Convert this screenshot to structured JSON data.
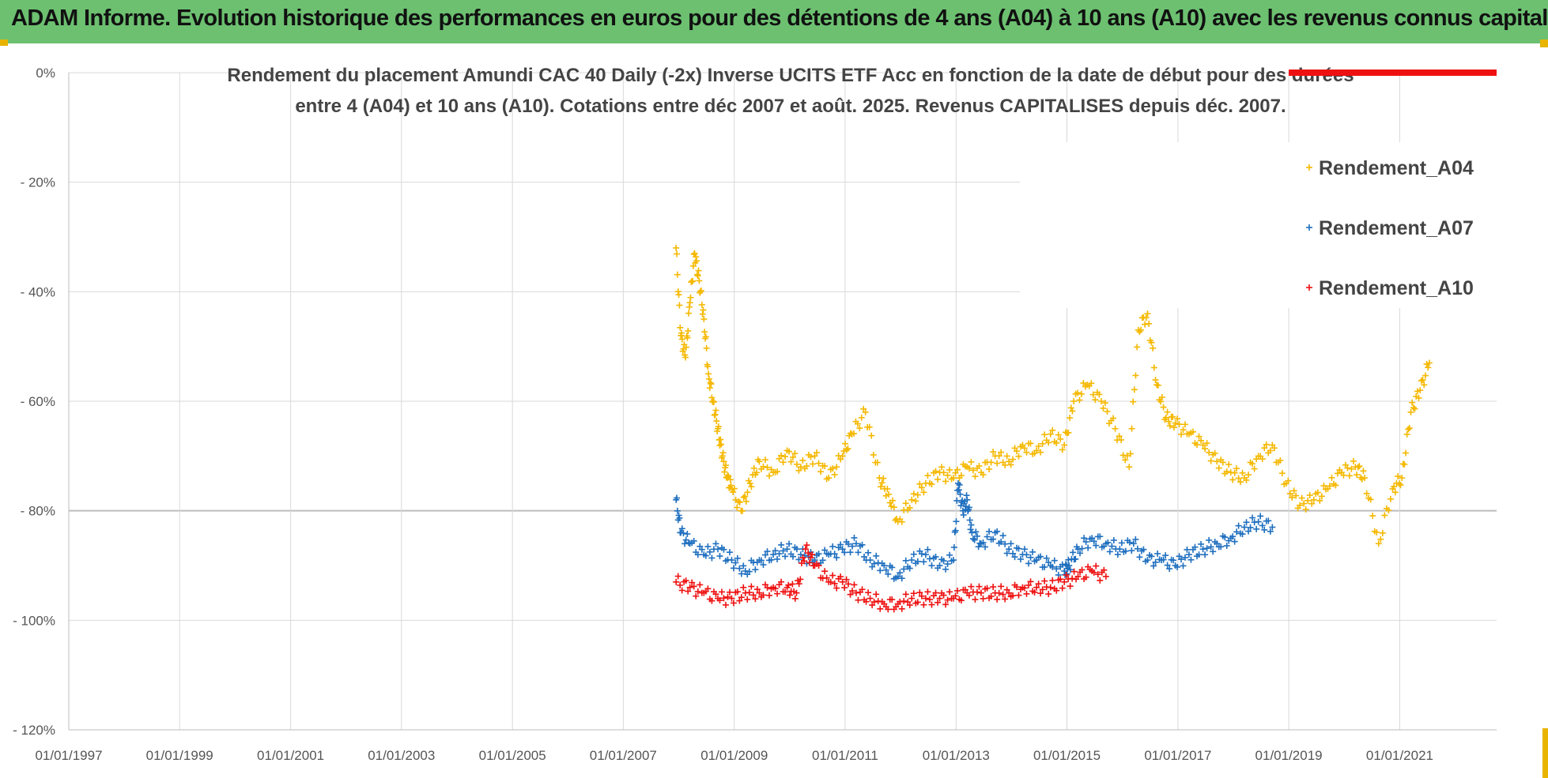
{
  "banner": {
    "title": "ADAM Informe. Evolution historique des performances en euros pour des détentions de 4 ans (A04) à 10 ans (A10) avec les revenus connus capitalisés"
  },
  "colors": {
    "banner": "#6cc070",
    "A04": "#f5b800",
    "A07": "#1f6fbf",
    "A10": "#ee1111",
    "accent_bar": "#e8b400"
  },
  "chart_data": {
    "type": "scatter",
    "title_lines": [
      "Rendement du placement Amundi CAC 40 Daily (-2x) Inverse UCITS ETF Acc en fonction de la date de début pour des durées",
      "entre 4 (A04) et 10 ans (A10). Cotations entre déc 2007 et août. 2025. Revenus CAPITALISES depuis déc. 2007."
    ],
    "xlabel": "",
    "ylabel": "",
    "x_range": [
      "01/01/1997",
      "01/10/2022"
    ],
    "x_tick_labels": [
      "01/01/1997",
      "01/01/1999",
      "01/01/2001",
      "01/01/2003",
      "01/01/2005",
      "01/01/2007",
      "01/01/2009",
      "01/01/2011",
      "01/01/2013",
      "01/01/2015",
      "01/01/2017",
      "01/01/2019",
      "01/01/2021"
    ],
    "y_range": [
      -120,
      0
    ],
    "y_tick_values": [
      0,
      -20,
      -40,
      -60,
      -80,
      -100,
      -120
    ],
    "y_tick_labels": [
      "0%",
      "- 20%",
      "- 40%",
      "- 60%",
      "- 80%",
      "- 100%",
      "- 120%"
    ],
    "grid": "horizontal and vertical",
    "legend_position": "right",
    "series": [
      {
        "name": "Rendement_A04",
        "color": "#f5b800",
        "x": [
          "2007-12",
          "2008-01",
          "2008-02",
          "2008-03",
          "2008-04",
          "2008-05",
          "2008-06",
          "2008-07",
          "2008-08",
          "2008-09",
          "2008-10",
          "2008-11",
          "2008-12",
          "2009-02",
          "2009-04",
          "2009-06",
          "2009-09",
          "2009-12",
          "2010-03",
          "2010-06",
          "2010-09",
          "2010-12",
          "2011-02",
          "2011-05",
          "2011-08",
          "2011-10",
          "2011-12",
          "2012-03",
          "2012-06",
          "2012-09",
          "2012-12",
          "2013-03",
          "2013-06",
          "2013-09",
          "2013-12",
          "2014-03",
          "2014-06",
          "2014-09",
          "2014-12",
          "2015-02",
          "2015-05",
          "2015-08",
          "2015-11",
          "2016-02",
          "2016-04",
          "2016-06",
          "2016-08",
          "2016-10",
          "2016-12",
          "2017-03",
          "2017-06",
          "2017-09",
          "2017-12",
          "2018-03",
          "2018-06",
          "2018-09",
          "2018-12",
          "2019-03",
          "2019-06",
          "2019-09",
          "2019-12",
          "2020-03",
          "2020-05",
          "2020-08",
          "2020-11",
          "2021-01",
          "2021-03",
          "2021-05",
          "2021-07"
        ],
        "values": [
          -32,
          -48,
          -52,
          -42,
          -33,
          -38,
          -45,
          -55,
          -60,
          -65,
          -70,
          -74,
          -76,
          -80,
          -75,
          -71,
          -73,
          -69,
          -72,
          -70,
          -74,
          -70,
          -66,
          -62,
          -74,
          -77,
          -82,
          -78,
          -75,
          -73,
          -74,
          -72,
          -73,
          -70,
          -71,
          -68,
          -69,
          -66,
          -68,
          -60,
          -57,
          -60,
          -65,
          -72,
          -47,
          -44,
          -57,
          -63,
          -64,
          -66,
          -68,
          -71,
          -73,
          -74,
          -70,
          -68,
          -75,
          -79,
          -78,
          -76,
          -73,
          -72,
          -74,
          -86,
          -76,
          -74,
          -62,
          -58,
          -53
        ]
      },
      {
        "name": "Rendement_A07",
        "color": "#1f6fbf",
        "x": [
          "2007-12",
          "2008-01",
          "2008-03",
          "2008-06",
          "2008-09",
          "2008-12",
          "2009-03",
          "2009-06",
          "2009-09",
          "2009-12",
          "2010-03",
          "2010-06",
          "2010-09",
          "2010-12",
          "2011-03",
          "2011-06",
          "2011-09",
          "2011-12",
          "2012-03",
          "2012-06",
          "2012-09",
          "2012-12",
          "2013-01",
          "2013-02",
          "2013-03",
          "2013-04",
          "2013-06",
          "2013-09",
          "2013-12",
          "2014-03",
          "2014-06",
          "2014-09",
          "2014-12",
          "2015-01",
          "2015-03",
          "2015-06",
          "2015-09",
          "2015-12",
          "2016-03",
          "2016-06",
          "2016-09",
          "2016-12",
          "2017-03",
          "2017-06",
          "2017-09",
          "2017-12",
          "2018-03",
          "2018-06",
          "2018-09"
        ],
        "values": [
          -78,
          -84,
          -86,
          -88,
          -87,
          -89,
          -91,
          -89,
          -88,
          -87,
          -88,
          -89,
          -88,
          -87,
          -86,
          -89,
          -90,
          -92,
          -89,
          -88,
          -90,
          -89,
          -75,
          -80,
          -78,
          -84,
          -86,
          -84,
          -87,
          -88,
          -89,
          -90,
          -91,
          -90,
          -87,
          -85,
          -86,
          -87,
          -86,
          -89,
          -89,
          -90,
          -88,
          -87,
          -86,
          -85,
          -83,
          -82,
          -83
        ]
      },
      {
        "name": "Rendement_A10",
        "color": "#ee1111",
        "x": [
          "2007-12",
          "2008-03",
          "2008-06",
          "2008-09",
          "2008-12",
          "2009-03",
          "2009-06",
          "2009-09",
          "2009-12",
          "2010-02",
          "2010-04",
          "2010-06",
          "2010-09",
          "2010-12",
          "2011-03",
          "2011-06",
          "2011-09",
          "2011-12",
          "2012-03",
          "2012-06",
          "2012-09",
          "2012-12",
          "2013-03",
          "2013-06",
          "2013-09",
          "2013-12",
          "2014-03",
          "2014-06",
          "2014-09",
          "2014-12",
          "2015-03",
          "2015-06",
          "2015-09"
        ],
        "values": [
          -93,
          -94,
          -95,
          -96,
          -96,
          -95,
          -95,
          -94,
          -94,
          -95,
          -87,
          -90,
          -93,
          -93,
          -95,
          -96,
          -97,
          -97,
          -96,
          -96,
          -96,
          -96,
          -95,
          -95,
          -95,
          -95,
          -94,
          -94,
          -94,
          -93,
          -92,
          -91,
          -92
        ]
      }
    ]
  }
}
